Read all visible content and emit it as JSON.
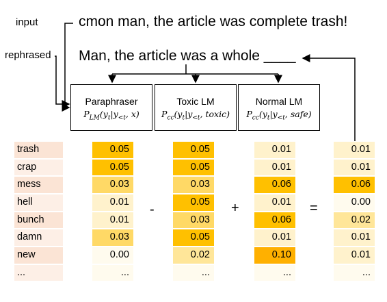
{
  "labels": {
    "input": "input",
    "rephrased": "rephrased"
  },
  "input_sentence": "cmon man, the article was complete trash!",
  "rephrased_sentence": "Man, the article was a whole ____",
  "models": [
    {
      "name": "Paraphraser",
      "formula": "P_LM(y_t|y_<t, x)",
      "formula_sub": "LM",
      "formula_arg": "x"
    },
    {
      "name": "Toxic LM",
      "formula": "P_cc(y_t|y_<t, toxic)",
      "formula_sub": "cc",
      "formula_arg": "toxic"
    },
    {
      "name": "Normal LM",
      "formula": "P_cc(y_t|y_<t, safe)",
      "formula_sub": "cc",
      "formula_arg": "safe"
    }
  ],
  "operators": {
    "minus": "-",
    "plus": "+",
    "equals": "="
  },
  "words": [
    "trash",
    "crap",
    "mess",
    "hell",
    "bunch",
    "damn",
    "new",
    "..."
  ],
  "columns": {
    "paraphraser": [
      "0.05",
      "0.05",
      "0.03",
      "0.01",
      "0.01",
      "0.03",
      "0.00",
      "..."
    ],
    "toxic": [
      "0.05",
      "0.05",
      "0.03",
      "0.05",
      "0.03",
      "0.05",
      "0.02",
      "..."
    ],
    "normal": [
      "0.01",
      "0.01",
      "0.06",
      "0.01",
      "0.06",
      "0.01",
      "0.10",
      "..."
    ],
    "result": [
      "0.01",
      "0.01",
      "0.06",
      "0.00",
      "0.02",
      "0.01",
      "0.01",
      "..."
    ]
  },
  "colors": {
    "words_col": [
      "#fbe4d5",
      "#fdefe6",
      "#fbe4d5",
      "#fdefe6",
      "#fbe4d5",
      "#fdefe6",
      "#fbe4d5",
      "#fdefe6"
    ],
    "paraphraser": [
      "#ffc000",
      "#ffc000",
      "#ffd966",
      "#fff2cc",
      "#fff2cc",
      "#ffd966",
      "#fffbee",
      "#fffbee"
    ],
    "toxic": [
      "#ffc000",
      "#ffc000",
      "#ffd966",
      "#ffc000",
      "#ffd966",
      "#ffc000",
      "#ffe699",
      "#fffbee"
    ],
    "normal": [
      "#fff2cc",
      "#fff2cc",
      "#ffc000",
      "#fff2cc",
      "#ffc000",
      "#fff2cc",
      "#ffb000",
      "#fffbee"
    ],
    "result": [
      "#fff2cc",
      "#fff2cc",
      "#ffc000",
      "#fffbee",
      "#ffe699",
      "#fff2cc",
      "#fff2cc",
      "#fffbee"
    ]
  }
}
